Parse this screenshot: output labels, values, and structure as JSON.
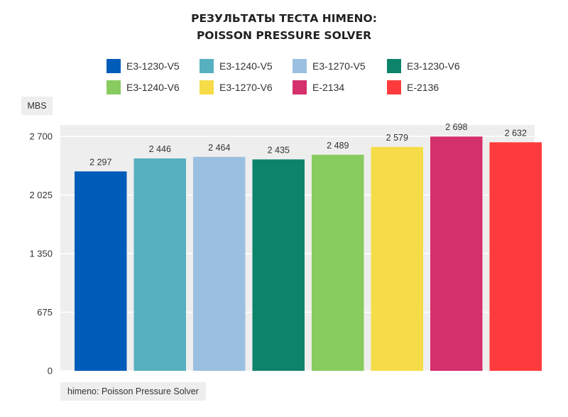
{
  "chart_data": {
    "type": "bar",
    "title": [
      "РЕЗУЛЬТАТЫ ТЕСТА HIMENO:",
      "POISSON PRESSURE SOLVER"
    ],
    "ylabel": "MBS",
    "source_label": "himeno: Poisson Pressure Solver",
    "ylim": [
      0,
      2700
    ],
    "yticks": [
      0,
      675,
      1350,
      2025,
      2700
    ],
    "ytick_labels": [
      "0",
      "675",
      "1 350",
      "2 025",
      "2 700"
    ],
    "grid": true,
    "legend_position": "top",
    "series": [
      {
        "name": "E3-1230-V5",
        "value": 2297,
        "label": "2 297",
        "color": "#005cb9"
      },
      {
        "name": "E3-1240-V5",
        "value": 2446,
        "label": "2 446",
        "color": "#57b0c0"
      },
      {
        "name": "E3-1270-V5",
        "value": 2464,
        "label": "2 464",
        "color": "#9bbfe0"
      },
      {
        "name": "E3-1230-V6",
        "value": 2435,
        "label": "2 435",
        "color": "#0e836c"
      },
      {
        "name": "E3-1240-V6",
        "value": 2489,
        "label": "2 489",
        "color": "#88cc60"
      },
      {
        "name": "E3-1270-V6",
        "value": 2579,
        "label": "2 579",
        "color": "#f5dc48"
      },
      {
        "name": "E-2134",
        "value": 2698,
        "label": "2 698",
        "color": "#d4306c"
      },
      {
        "name": "E-2136",
        "value": 2632,
        "label": "2 632",
        "color": "#fe3b3c"
      }
    ]
  }
}
